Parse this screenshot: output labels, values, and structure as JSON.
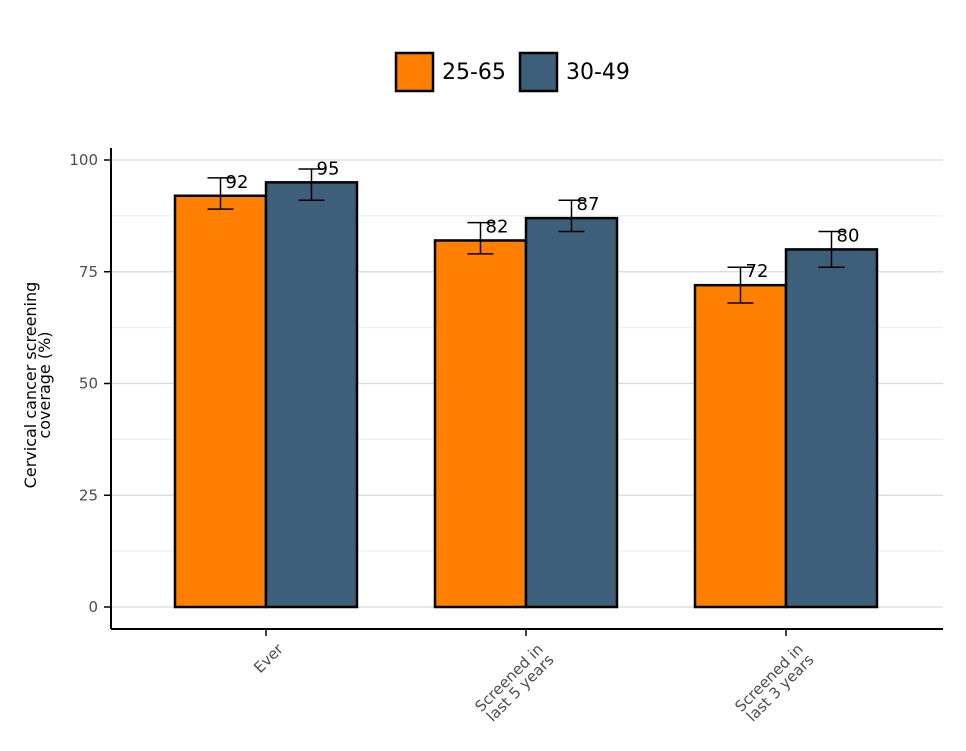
{
  "chart_data": {
    "type": "bar",
    "title": "",
    "xlabel": "",
    "ylabel_lines": [
      "Cervical cancer screening",
      "coverage (%)"
    ],
    "categories": [
      [
        "Ever"
      ],
      [
        "Screened in",
        "last 5 years"
      ],
      [
        "Screened in",
        "last 3 years"
      ]
    ],
    "series": [
      {
        "name": "25-65",
        "color": "#ff7f00",
        "values": [
          92,
          82,
          72
        ],
        "err_low": [
          89,
          79,
          68
        ],
        "err_high": [
          96,
          86,
          76
        ]
      },
      {
        "name": "30-49",
        "color": "#3d5f7a",
        "values": [
          95,
          87,
          80
        ],
        "err_low": [
          91,
          84,
          76
        ],
        "err_high": [
          98,
          91,
          84
        ]
      }
    ],
    "ylim": [
      -5,
      103
    ],
    "yticks": [
      0,
      25,
      50,
      75,
      100
    ],
    "grid": true,
    "legend_position": "top-center"
  }
}
